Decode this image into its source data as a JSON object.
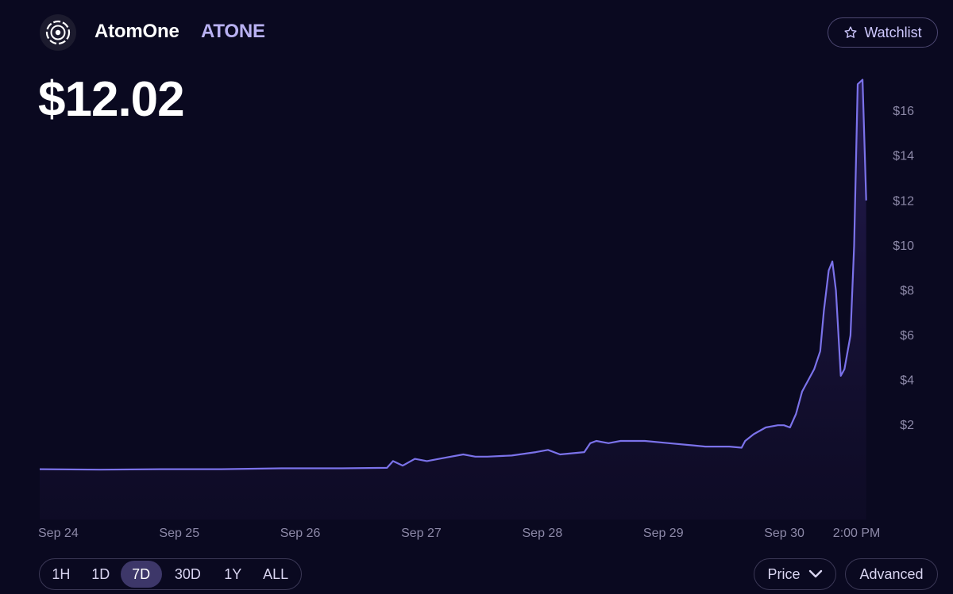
{
  "header": {
    "logo_icon": "atomone-logo-icon",
    "name": "AtomOne",
    "symbol": "ATONE",
    "watchlist_label": "Watchlist",
    "watchlist_icon": "star-icon"
  },
  "price": {
    "current": "$12.02"
  },
  "colors": {
    "background": "#0a0920",
    "line": "#7b72ea",
    "accent_text": "#b9b1f2",
    "active_range": "#3d3769"
  },
  "controls": {
    "ranges": [
      "1H",
      "1D",
      "7D",
      "30D",
      "1Y",
      "ALL"
    ],
    "active_range": "7D",
    "metric_select": "Price",
    "metric_icon": "chevron-down-icon",
    "advanced_label": "Advanced"
  },
  "chart_data": {
    "type": "area",
    "title": "",
    "xlabel": "",
    "ylabel": "",
    "x_tick_labels": [
      "Sep 24",
      "Sep 25",
      "Sep 26",
      "Sep 27",
      "Sep 28",
      "Sep 29",
      "Sep 30",
      "2:00 PM"
    ],
    "x_tick_days": [
      0,
      1,
      2,
      3,
      4,
      5,
      6,
      6.58
    ],
    "y_tick_labels": [
      "$2",
      "$4",
      "$6",
      "$8",
      "$10",
      "$12",
      "$14",
      "$16"
    ],
    "y_tick_values": [
      2,
      4,
      6,
      8,
      10,
      12,
      14,
      16
    ],
    "ylim": [
      -2.2,
      17.1
    ],
    "xlim_days": [
      0,
      6.95
    ],
    "grid": false,
    "legend": "none",
    "series": [
      {
        "x_days": [
          0,
          0.5,
          1,
          1.5,
          2,
          2.5,
          2.87,
          2.92,
          3.0,
          3.1,
          3.2,
          3.3,
          3.5,
          3.6,
          3.7,
          3.9,
          4.1,
          4.2,
          4.3,
          4.5,
          4.55,
          4.6,
          4.7,
          4.8,
          4.9,
          5.0,
          5.2,
          5.4,
          5.5,
          5.6,
          5.7,
          5.8,
          5.83,
          5.9,
          6.0,
          6.1,
          6.15,
          6.2,
          6.25,
          6.3,
          6.35,
          6.4,
          6.45,
          6.48,
          6.52,
          6.55,
          6.58,
          6.62,
          6.65,
          6.7,
          6.73,
          6.76,
          6.8,
          6.83
        ],
        "y_values": [
          0.04,
          0.02,
          0.04,
          0.04,
          0.08,
          0.08,
          0.1,
          0.4,
          0.2,
          0.5,
          0.4,
          0.5,
          0.7,
          0.6,
          0.6,
          0.65,
          0.8,
          0.9,
          0.7,
          0.8,
          1.2,
          1.3,
          1.2,
          1.3,
          1.3,
          1.3,
          1.2,
          1.1,
          1.05,
          1.05,
          1.05,
          1.0,
          1.3,
          1.6,
          1.9,
          2.0,
          2.0,
          1.9,
          2.5,
          3.5,
          4.0,
          4.5,
          5.3,
          7.1,
          8.9,
          9.3,
          8.0,
          4.2,
          4.5,
          6.0,
          10.0,
          17.2,
          17.4,
          12.02
        ]
      }
    ]
  }
}
